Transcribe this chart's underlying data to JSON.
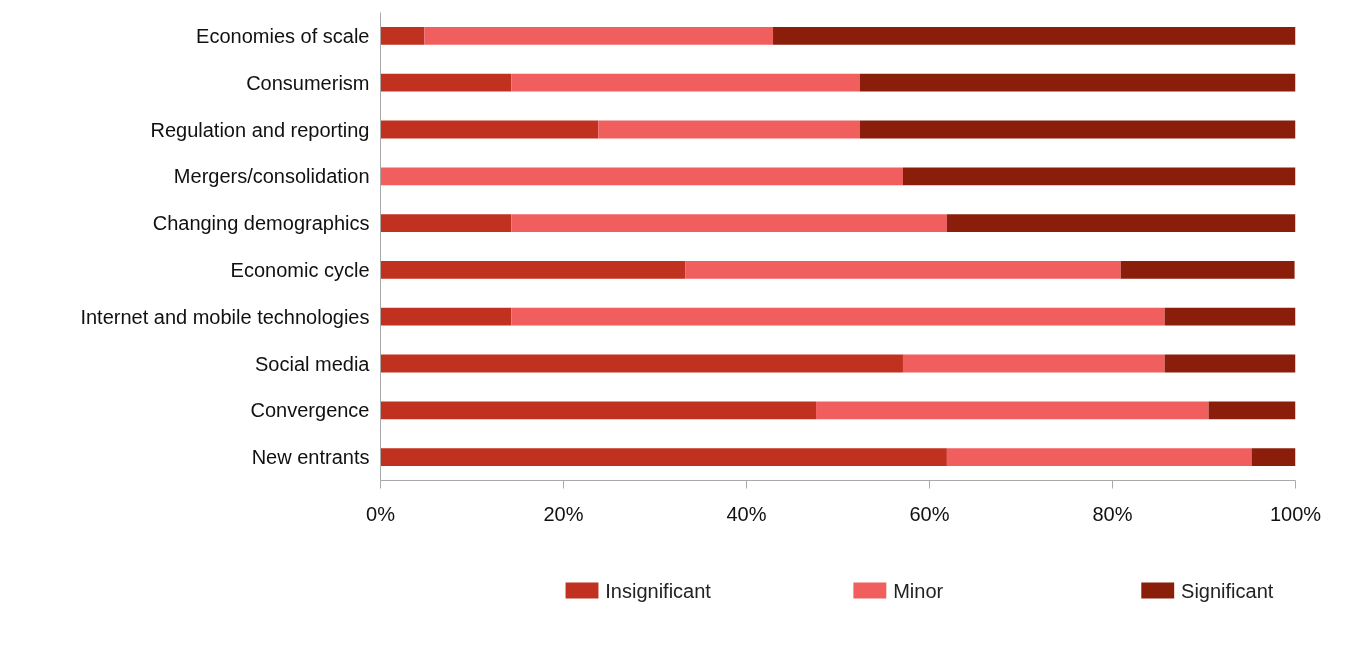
{
  "chart_data": {
    "type": "bar",
    "orientation": "horizontal",
    "stacked": true,
    "categories": [
      "Economies of scale",
      "Consumerism",
      "Regulation and reporting",
      "Mergers/consolidation",
      "Changing demographics",
      "Economic cycle",
      "Internet and mobile technologies",
      "Social media",
      "Convergence",
      "New entrants"
    ],
    "series": [
      {
        "name": "Insignificant",
        "color": "#c0311f",
        "values": [
          4.8,
          14.3,
          23.8,
          0,
          14.3,
          33.3,
          14.3,
          57.1,
          47.6,
          61.9
        ]
      },
      {
        "name": "Minor",
        "color": "#f05e5e",
        "values": [
          38.1,
          38.1,
          28.6,
          57.1,
          47.6,
          47.6,
          71.4,
          28.6,
          42.9,
          33.3
        ]
      },
      {
        "name": "Significant",
        "color": "#8b1e0a",
        "values": [
          57.1,
          47.6,
          47.6,
          42.9,
          38.1,
          19.0,
          14.3,
          14.3,
          9.5,
          4.8
        ]
      }
    ],
    "xlim": [
      0,
      100
    ],
    "xticks": [
      {
        "value": 0,
        "label": "0%"
      },
      {
        "value": 20,
        "label": "20%"
      },
      {
        "value": 40,
        "label": "40%"
      },
      {
        "value": 60,
        "label": "60%"
      },
      {
        "value": 80,
        "label": "80%"
      },
      {
        "value": 100,
        "label": "100%"
      }
    ],
    "grid": false,
    "legend": "bottom"
  }
}
